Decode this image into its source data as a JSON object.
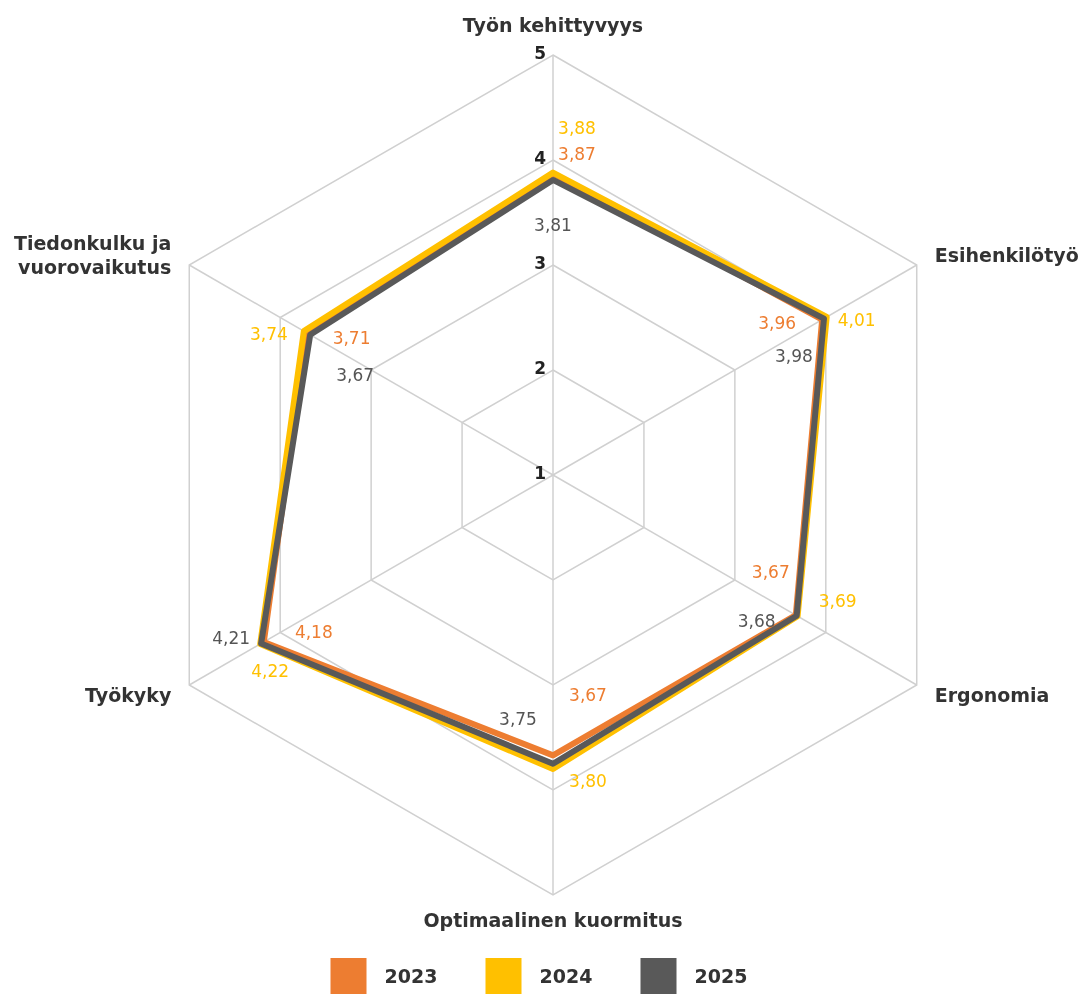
{
  "chart_data": {
    "type": "radar",
    "categories": [
      "Työn kehittyvyys",
      "Esihenkilötyö",
      "Ergonomia",
      "Optimaalinen kuormitus",
      "Työkyky",
      "Tiedonkulku ja vuorovaikutus"
    ],
    "series": [
      {
        "name": "2023",
        "color": "#ed7d31",
        "values": [
          3.87,
          3.96,
          3.67,
          3.67,
          4.18,
          3.71
        ],
        "value_labels": [
          "3,87",
          "3,96",
          "3,67",
          "3,67",
          "4,18",
          "3,71"
        ]
      },
      {
        "name": "2024",
        "color": "#ffc000",
        "values": [
          3.88,
          4.01,
          3.69,
          3.8,
          4.22,
          3.74
        ],
        "value_labels": [
          "3,88",
          "4,01",
          "3,69",
          "3,80",
          "4,22",
          "3,74"
        ]
      },
      {
        "name": "2025",
        "color": "#595959",
        "values": [
          3.81,
          3.98,
          3.68,
          3.75,
          4.21,
          3.67
        ],
        "value_labels": [
          "3,81",
          "3,98",
          "3,68",
          "3,75",
          "4,21",
          "3,67"
        ]
      }
    ],
    "ylim": [
      1,
      5
    ],
    "yticks": [
      1,
      2,
      3,
      4,
      5
    ],
    "grid": true,
    "legend": "bottom",
    "marker": "none",
    "line_style": "solid"
  }
}
